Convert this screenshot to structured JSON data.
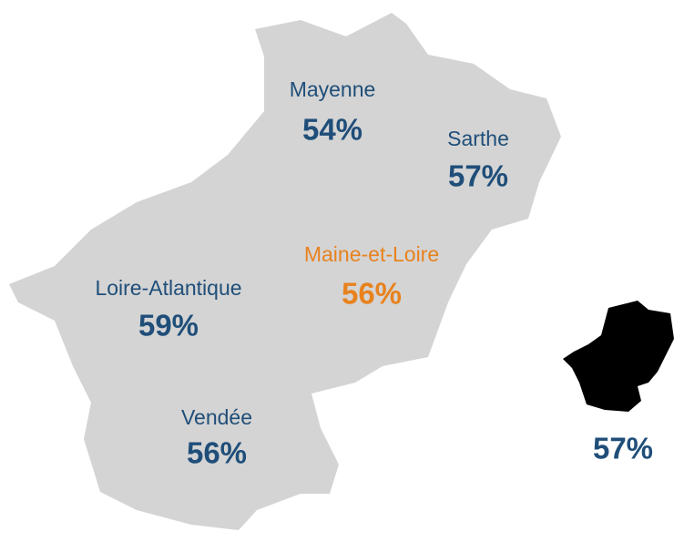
{
  "map": {
    "regions": [
      {
        "name": "Mayenne",
        "value": "54%",
        "color": "#1f4e79"
      },
      {
        "name": "Sarthe",
        "value": "57%",
        "color": "#1f4e79"
      },
      {
        "name": "Maine-et-Loire",
        "value": "56%",
        "color": "#e8821e"
      },
      {
        "name": "Loire-Atlantique",
        "value": "59%",
        "color": "#1f4e79"
      },
      {
        "name": "Vendée",
        "value": "56%",
        "color": "#1f4e79"
      }
    ],
    "total": {
      "value": "57%",
      "color": "#1f4e79"
    }
  }
}
